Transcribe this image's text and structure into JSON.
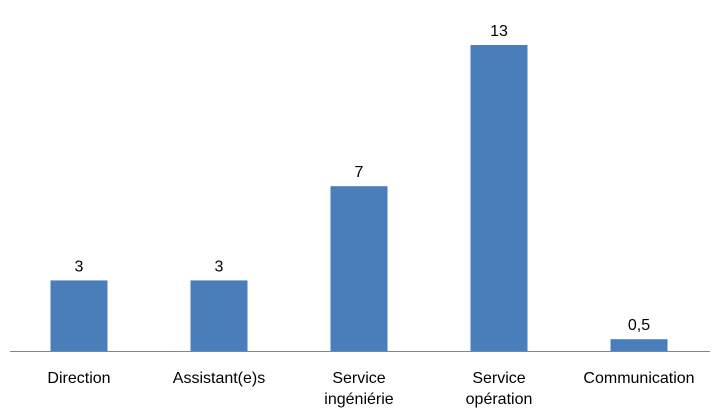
{
  "chart_data": {
    "type": "bar",
    "title": "",
    "xlabel": "",
    "ylabel": "",
    "categories": [
      [
        "Direction"
      ],
      [
        "Assistant(e)s"
      ],
      [
        "Service",
        "ingéniérie"
      ],
      [
        "Service",
        "opération"
      ],
      [
        "Communication"
      ]
    ],
    "values": [
      3,
      3,
      7,
      13,
      0.5
    ],
    "value_labels": [
      "3",
      "3",
      "7",
      "13",
      "0,5"
    ],
    "ylim": [
      0,
      13
    ],
    "grid": false,
    "legend": "none",
    "colors": {
      "bar": "#4a7ebb",
      "axis": "#868686"
    }
  }
}
